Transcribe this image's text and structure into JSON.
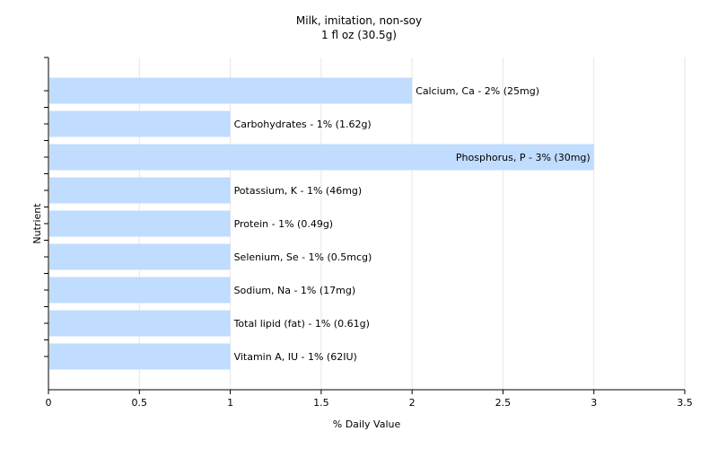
{
  "chart_data": {
    "type": "bar",
    "orientation": "horizontal",
    "title": "Milk, imitation, non-soy",
    "subtitle": "1 fl oz (30.5g)",
    "xlabel": "% Daily Value",
    "ylabel": "Nutrient",
    "xlim": [
      0,
      3.5
    ],
    "xticks": [
      "0",
      "0.5",
      "1",
      "1.5",
      "2",
      "2.5",
      "3",
      "3.5"
    ],
    "grid": true,
    "legend": "none",
    "bar_color": "#c0dcff",
    "categories": [
      "Calcium, Ca",
      "Carbohydrates",
      "Phosphorus, P",
      "Potassium, K",
      "Protein",
      "Selenium, Se",
      "Sodium, Na",
      "Total lipid (fat)",
      "Vitamin A, IU"
    ],
    "values": [
      2,
      1,
      3,
      1,
      1,
      1,
      1,
      1,
      1
    ],
    "labels": [
      "Calcium, Ca - 2% (25mg)",
      "Carbohydrates - 1% (1.62g)",
      "Phosphorus, P - 3% (30mg)",
      "Potassium, K - 1% (46mg)",
      "Protein - 1% (0.49g)",
      "Selenium, Se - 1% (0.5mcg)",
      "Sodium, Na - 1% (17mg)",
      "Total lipid (fat) - 1% (0.61g)",
      "Vitamin A, IU - 1% (62IU)"
    ]
  }
}
